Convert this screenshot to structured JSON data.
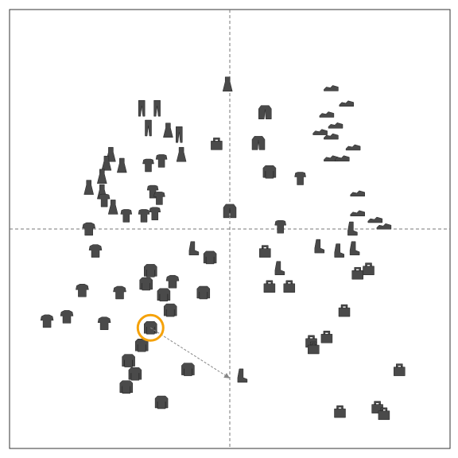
{
  "chart_data": {
    "type": "scatter",
    "title": "",
    "xlabel": "",
    "ylabel": "",
    "xlim": [
      -1,
      1
    ],
    "ylim": [
      -1,
      1
    ],
    "grid": false,
    "reference_lines": {
      "x": 0,
      "y": 0,
      "style": "dashed"
    },
    "highlight": {
      "x": -0.36,
      "y": -0.45,
      "color": "#f5a20a"
    },
    "arrow": {
      "from": [
        -0.36,
        -0.45
      ],
      "to": [
        0.0,
        -0.68
      ]
    },
    "point_color": "#4a4a4a",
    "points": [
      {
        "x": -0.01,
        "y": 0.66,
        "icon": "dress-icon"
      },
      {
        "x": 0.16,
        "y": 0.53,
        "icon": "jacket-icon"
      },
      {
        "x": 0.13,
        "y": 0.39,
        "icon": "jacket-icon"
      },
      {
        "x": 0.18,
        "y": 0.26,
        "icon": "sweater-icon"
      },
      {
        "x": 0.32,
        "y": 0.23,
        "icon": "top-icon"
      },
      {
        "x": -0.06,
        "y": 0.39,
        "icon": "bag-icon"
      },
      {
        "x": 0.0,
        "y": 0.08,
        "icon": "jacket-icon"
      },
      {
        "x": 0.23,
        "y": 0.01,
        "icon": "top-icon"
      },
      {
        "x": -0.4,
        "y": 0.55,
        "icon": "trousers-icon"
      },
      {
        "x": -0.33,
        "y": 0.55,
        "icon": "trousers-icon"
      },
      {
        "x": -0.37,
        "y": 0.46,
        "icon": "trousers-icon"
      },
      {
        "x": -0.28,
        "y": 0.45,
        "icon": "dress-icon"
      },
      {
        "x": -0.23,
        "y": 0.43,
        "icon": "trousers-icon"
      },
      {
        "x": -0.54,
        "y": 0.34,
        "icon": "dress-icon"
      },
      {
        "x": -0.56,
        "y": 0.3,
        "icon": "dress-icon"
      },
      {
        "x": -0.49,
        "y": 0.29,
        "icon": "dress-icon"
      },
      {
        "x": -0.37,
        "y": 0.29,
        "icon": "top-icon"
      },
      {
        "x": -0.31,
        "y": 0.31,
        "icon": "top-icon"
      },
      {
        "x": -0.22,
        "y": 0.34,
        "icon": "dress-icon"
      },
      {
        "x": -0.58,
        "y": 0.24,
        "icon": "dress-icon"
      },
      {
        "x": -0.64,
        "y": 0.19,
        "icon": "dress-icon"
      },
      {
        "x": -0.58,
        "y": 0.17,
        "icon": "dress-icon"
      },
      {
        "x": -0.35,
        "y": 0.17,
        "icon": "top-icon"
      },
      {
        "x": -0.32,
        "y": 0.14,
        "icon": "top-icon"
      },
      {
        "x": -0.57,
        "y": 0.13,
        "icon": "top-icon"
      },
      {
        "x": -0.53,
        "y": 0.1,
        "icon": "dress-icon"
      },
      {
        "x": -0.47,
        "y": 0.06,
        "icon": "top-icon"
      },
      {
        "x": -0.39,
        "y": 0.06,
        "icon": "top-icon"
      },
      {
        "x": -0.34,
        "y": 0.07,
        "icon": "top-icon"
      },
      {
        "x": -0.64,
        "y": 0.0,
        "icon": "shirt-icon"
      },
      {
        "x": -0.61,
        "y": -0.1,
        "icon": "shirt-icon"
      },
      {
        "x": -0.17,
        "y": -0.09,
        "icon": "boot-icon"
      },
      {
        "x": -0.09,
        "y": -0.13,
        "icon": "sweater-icon"
      },
      {
        "x": -0.36,
        "y": -0.19,
        "icon": "sweater-icon"
      },
      {
        "x": -0.26,
        "y": -0.24,
        "icon": "shirt-icon"
      },
      {
        "x": -0.38,
        "y": -0.25,
        "icon": "sweater-icon"
      },
      {
        "x": -0.67,
        "y": -0.28,
        "icon": "shirt-icon"
      },
      {
        "x": -0.5,
        "y": -0.29,
        "icon": "shirt-icon"
      },
      {
        "x": -0.3,
        "y": -0.3,
        "icon": "sweater-icon"
      },
      {
        "x": -0.12,
        "y": -0.29,
        "icon": "sweater-icon"
      },
      {
        "x": -0.27,
        "y": -0.37,
        "icon": "sweater-icon"
      },
      {
        "x": -0.83,
        "y": -0.42,
        "icon": "shirt-icon"
      },
      {
        "x": -0.74,
        "y": -0.4,
        "icon": "shirt-icon"
      },
      {
        "x": -0.57,
        "y": -0.43,
        "icon": "shirt-icon"
      },
      {
        "x": -0.36,
        "y": -0.45,
        "icon": "sweater-icon"
      },
      {
        "x": -0.4,
        "y": -0.53,
        "icon": "sweater-icon"
      },
      {
        "x": -0.46,
        "y": -0.6,
        "icon": "sweater-icon"
      },
      {
        "x": -0.43,
        "y": -0.66,
        "icon": "sweater-icon"
      },
      {
        "x": -0.19,
        "y": -0.64,
        "icon": "sweater-icon"
      },
      {
        "x": -0.47,
        "y": -0.72,
        "icon": "sweater-icon"
      },
      {
        "x": -0.31,
        "y": -0.79,
        "icon": "sweater-icon"
      },
      {
        "x": 0.46,
        "y": 0.64,
        "icon": "shoe-icon"
      },
      {
        "x": 0.53,
        "y": 0.57,
        "icon": "shoe-icon"
      },
      {
        "x": 0.44,
        "y": 0.52,
        "icon": "shoe-icon"
      },
      {
        "x": 0.48,
        "y": 0.47,
        "icon": "shoe-icon"
      },
      {
        "x": 0.41,
        "y": 0.44,
        "icon": "shoe-icon"
      },
      {
        "x": 0.46,
        "y": 0.42,
        "icon": "shoe-icon"
      },
      {
        "x": 0.56,
        "y": 0.37,
        "icon": "shoe-icon"
      },
      {
        "x": 0.46,
        "y": 0.32,
        "icon": "shoe-icon"
      },
      {
        "x": 0.51,
        "y": 0.32,
        "icon": "shoe-icon"
      },
      {
        "x": 0.58,
        "y": 0.16,
        "icon": "shoe-icon"
      },
      {
        "x": 0.58,
        "y": 0.07,
        "icon": "shoe-icon"
      },
      {
        "x": 0.66,
        "y": 0.04,
        "icon": "shoe-icon"
      },
      {
        "x": 0.7,
        "y": 0.01,
        "icon": "shoe-icon"
      },
      {
        "x": 0.55,
        "y": 0.0,
        "icon": "boot-icon"
      },
      {
        "x": 0.4,
        "y": -0.08,
        "icon": "boot-icon"
      },
      {
        "x": 0.49,
        "y": -0.1,
        "icon": "boot-icon"
      },
      {
        "x": 0.56,
        "y": -0.09,
        "icon": "boot-icon"
      },
      {
        "x": 0.16,
        "y": -0.1,
        "icon": "bag-icon"
      },
      {
        "x": 0.22,
        "y": -0.18,
        "icon": "boot-icon"
      },
      {
        "x": 0.18,
        "y": -0.26,
        "icon": "bag-icon"
      },
      {
        "x": 0.27,
        "y": -0.26,
        "icon": "bag-icon"
      },
      {
        "x": 0.58,
        "y": -0.2,
        "icon": "bag-icon"
      },
      {
        "x": 0.63,
        "y": -0.18,
        "icon": "bag-icon"
      },
      {
        "x": 0.52,
        "y": -0.37,
        "icon": "bag-icon"
      },
      {
        "x": 0.44,
        "y": -0.49,
        "icon": "bag-icon"
      },
      {
        "x": 0.37,
        "y": -0.51,
        "icon": "bag-icon"
      },
      {
        "x": 0.38,
        "y": -0.54,
        "icon": "bag-icon"
      },
      {
        "x": 0.77,
        "y": -0.64,
        "icon": "bag-icon"
      },
      {
        "x": 0.05,
        "y": -0.67,
        "icon": "boot-icon"
      },
      {
        "x": 0.5,
        "y": -0.83,
        "icon": "bag-icon"
      },
      {
        "x": 0.67,
        "y": -0.81,
        "icon": "bag-icon"
      },
      {
        "x": 0.7,
        "y": -0.84,
        "icon": "bag-icon"
      }
    ]
  }
}
